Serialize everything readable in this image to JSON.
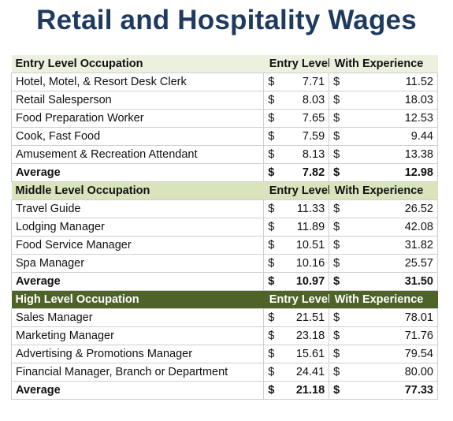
{
  "title": "Retail and Hospitality Wages",
  "currency_symbol": "$",
  "colors": {
    "title": "#1f3a5f",
    "entry_header_bg": "#ebf1de",
    "middle_header_bg": "#d7e4bc",
    "high_header_bg": "#4f6228"
  },
  "sections": [
    {
      "header": {
        "occupation": "Entry Level Occupation",
        "entry": "Entry Level",
        "experience": "With Experience"
      },
      "rows": [
        {
          "name": "Hotel, Motel, & Resort Desk Clerk",
          "entry": "7.71",
          "experience": "11.52"
        },
        {
          "name": "Retail Salesperson",
          "entry": "8.03",
          "experience": "18.03"
        },
        {
          "name": "Food Preparation Worker",
          "entry": "7.65",
          "experience": "12.53"
        },
        {
          "name": "Cook, Fast Food",
          "entry": "7.59",
          "experience": "9.44"
        },
        {
          "name": "Amusement & Recreation Attendant",
          "entry": "8.13",
          "experience": "13.38"
        }
      ],
      "average": {
        "label": "Average",
        "entry": "7.82",
        "experience": "12.98"
      }
    },
    {
      "header": {
        "occupation": "Middle Level Occupation",
        "entry": "Entry Level",
        "experience": "With Experience"
      },
      "rows": [
        {
          "name": "Travel Guide",
          "entry": "11.33",
          "experience": "26.52"
        },
        {
          "name": "Lodging Manager",
          "entry": "11.89",
          "experience": "42.08"
        },
        {
          "name": "Food Service Manager",
          "entry": "10.51",
          "experience": "31.82"
        },
        {
          "name": "Spa Manager",
          "entry": "10.16",
          "experience": "25.57"
        }
      ],
      "average": {
        "label": "Average",
        "entry": "10.97",
        "experience": "31.50"
      }
    },
    {
      "header": {
        "occupation": "High Level Occupation",
        "entry": "Entry Level",
        "experience": "With Experience"
      },
      "rows": [
        {
          "name": "Sales Manager",
          "entry": "21.51",
          "experience": "78.01"
        },
        {
          "name": "Marketing Manager",
          "entry": "23.18",
          "experience": "71.76"
        },
        {
          "name": "Advertising & Promotions Manager",
          "entry": "15.61",
          "experience": "79.54"
        },
        {
          "name": "Financial Manager, Branch or Department",
          "entry": "24.41",
          "experience": "80.00"
        }
      ],
      "average": {
        "label": "Average",
        "entry": "21.18",
        "experience": "77.33"
      }
    }
  ]
}
